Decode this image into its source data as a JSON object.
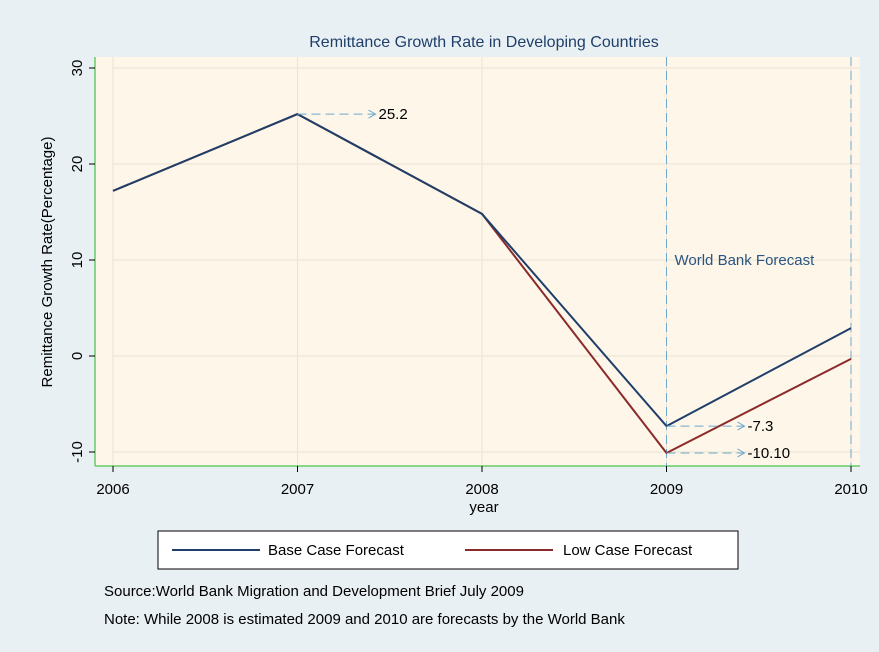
{
  "chart_data": {
    "type": "line",
    "title": "Remittance Growth Rate in Developing Countries",
    "xlabel": "year",
    "ylabel": "Remittance Growth Rate(Percentage)",
    "x": [
      2006,
      2007,
      2008,
      2009,
      2010
    ],
    "x_tick_labels": [
      "2006",
      "2007",
      "2008",
      "2009",
      "2010"
    ],
    "y_ticks": [
      -10,
      0,
      10,
      20,
      30
    ],
    "y_tick_labels": [
      "-10",
      "0",
      "10",
      "20",
      "30"
    ],
    "xlim": [
      2006,
      2010
    ],
    "ylim": [
      -10,
      30
    ],
    "grid": true,
    "series": [
      {
        "name": "Base Case Forecast",
        "values": [
          17.2,
          25.2,
          14.8,
          -7.3,
          2.9
        ],
        "color": "#1f3f6a"
      },
      {
        "name": "Low Case Forecast",
        "values": [
          17.2,
          25.2,
          14.8,
          -10.1,
          -0.3
        ],
        "color": "#8b2a2a"
      }
    ],
    "annotations": [
      {
        "x": 2007,
        "y": 25.2,
        "text": "25.2"
      },
      {
        "x": 2009,
        "y": -7.3,
        "text": "-7.3"
      },
      {
        "x": 2009,
        "y": -10.1,
        "text": "-10.10"
      }
    ],
    "forecast_region": {
      "start": 2009,
      "end": 2010,
      "label": "World Bank Forecast"
    },
    "legend": {
      "placement": "bottom"
    },
    "notes": [
      "Source:World Bank Migration and Development Brief July 2009",
      "Note: While 2008 is estimated 2009 and 2010 are forecasts by the World Bank"
    ],
    "colors": {
      "plot_background": "#fdf6e9",
      "page_background": "#e9f0f3",
      "axis": "#66cc66",
      "grid": "#eae3d5",
      "annotation_line": "#6ea9cc"
    }
  }
}
